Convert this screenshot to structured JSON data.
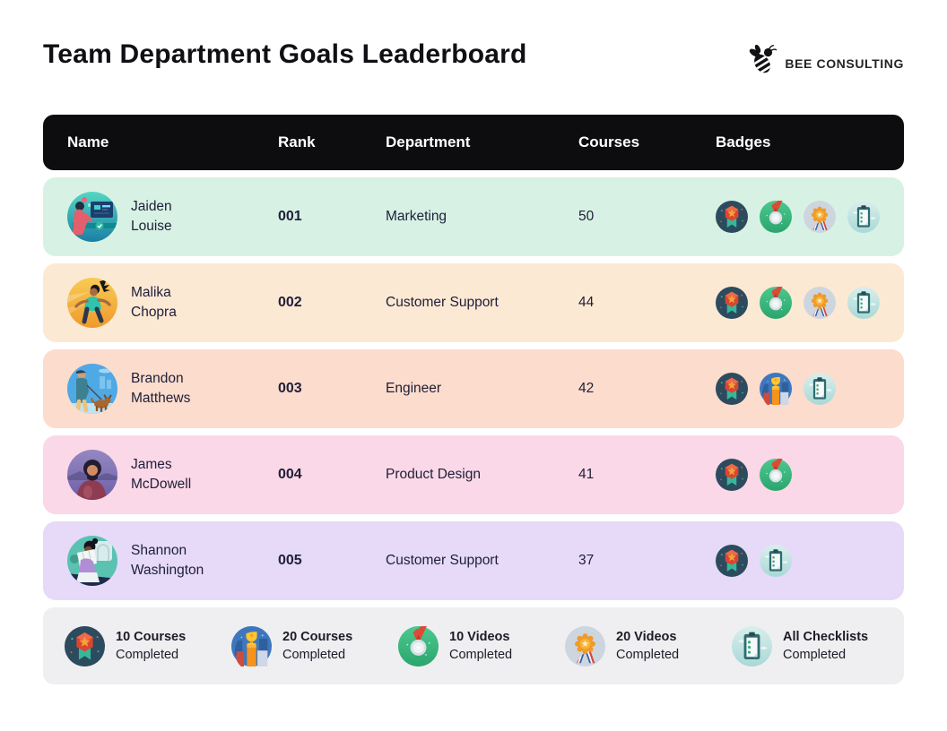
{
  "title": "Team Department Goals Leaderboard",
  "logo": {
    "brand": "BEE CONSULTING"
  },
  "table": {
    "columns": [
      "Name",
      "Rank",
      "Department",
      "Courses",
      "Badges"
    ]
  },
  "rows": [
    {
      "first": "Jaiden",
      "last": "Louise",
      "rank": "001",
      "department": "Marketing",
      "courses": "50",
      "badges": [
        "courses10",
        "videos10",
        "videos20",
        "checklists"
      ],
      "row_bg": "#d7f2e4"
    },
    {
      "first": "Malika",
      "last": "Chopra",
      "rank": "002",
      "department": "Customer Support",
      "courses": "44",
      "badges": [
        "courses10",
        "videos10",
        "videos20",
        "checklists"
      ],
      "row_bg": "#fce9d4"
    },
    {
      "first": "Brandon",
      "last": "Matthews",
      "rank": "003",
      "department": "Engineer",
      "courses": "42",
      "badges": [
        "courses10",
        "courses20",
        "checklists"
      ],
      "row_bg": "#fcdccd"
    },
    {
      "first": "James",
      "last": "McDowell",
      "rank": "004",
      "department": "Product Design",
      "courses": "41",
      "badges": [
        "courses10",
        "videos10"
      ],
      "row_bg": "#fad8e7"
    },
    {
      "first": "Shannon",
      "last": "Washington",
      "rank": "005",
      "department": "Customer Support",
      "courses": "37",
      "badges": [
        "courses10",
        "checklists"
      ],
      "row_bg": "#e6daf8"
    }
  ],
  "badges": {
    "courses10": {
      "icon": "rosette-medal-icon",
      "title": "10 Courses",
      "subtitle": "Completed",
      "circle": "#2c4b5e"
    },
    "courses20": {
      "icon": "trophy-podium-icon",
      "title": "20 Courses",
      "subtitle": "Completed",
      "circle": "#3e77bd"
    },
    "videos10": {
      "icon": "silver-medal-icon",
      "title": "10 Videos",
      "subtitle": "Completed",
      "circle": "#3cb981"
    },
    "videos20": {
      "icon": "starburst-medal-icon",
      "title": "20 Videos",
      "subtitle": "Completed",
      "circle": "#cdd6de"
    },
    "checklists": {
      "icon": "checklist-clipboard-icon",
      "title": "All Checklists",
      "subtitle": "Completed",
      "circle": "#c3e6e2"
    }
  },
  "legend_order": [
    "courses10",
    "courses20",
    "videos10",
    "videos20",
    "checklists"
  ],
  "colors": {
    "header_bar": "#0d0d0f",
    "legend_bg": "#efeff1",
    "title_text": "#0f0f14",
    "header_text": "#ffffff"
  },
  "chart_data": {
    "type": "table",
    "title": "Team Department Goals Leaderboard",
    "columns": [
      "Name",
      "Rank",
      "Department",
      "Courses",
      "Badges"
    ],
    "rows": [
      [
        "Jaiden Louise",
        "001",
        "Marketing",
        50,
        [
          "10 Courses Completed",
          "10 Videos Completed",
          "20 Videos Completed",
          "All Checklists Completed"
        ]
      ],
      [
        "Malika Chopra",
        "002",
        "Customer Support",
        44,
        [
          "10 Courses Completed",
          "10 Videos Completed",
          "20 Videos Completed",
          "All Checklists Completed"
        ]
      ],
      [
        "Brandon Matthews",
        "003",
        "Engineer",
        42,
        [
          "10 Courses Completed",
          "20 Courses Completed",
          "All Checklists Completed"
        ]
      ],
      [
        "James McDowell",
        "004",
        "Product Design",
        41,
        [
          "10 Courses Completed",
          "10 Videos Completed"
        ]
      ],
      [
        "Shannon Washington",
        "005",
        "Customer Support",
        37,
        [
          "10 Courses Completed",
          "All Checklists Completed"
        ]
      ]
    ],
    "legend": [
      "10 Courses Completed",
      "20 Courses Completed",
      "10 Videos Completed",
      "20 Videos Completed",
      "All Checklists Completed"
    ]
  }
}
